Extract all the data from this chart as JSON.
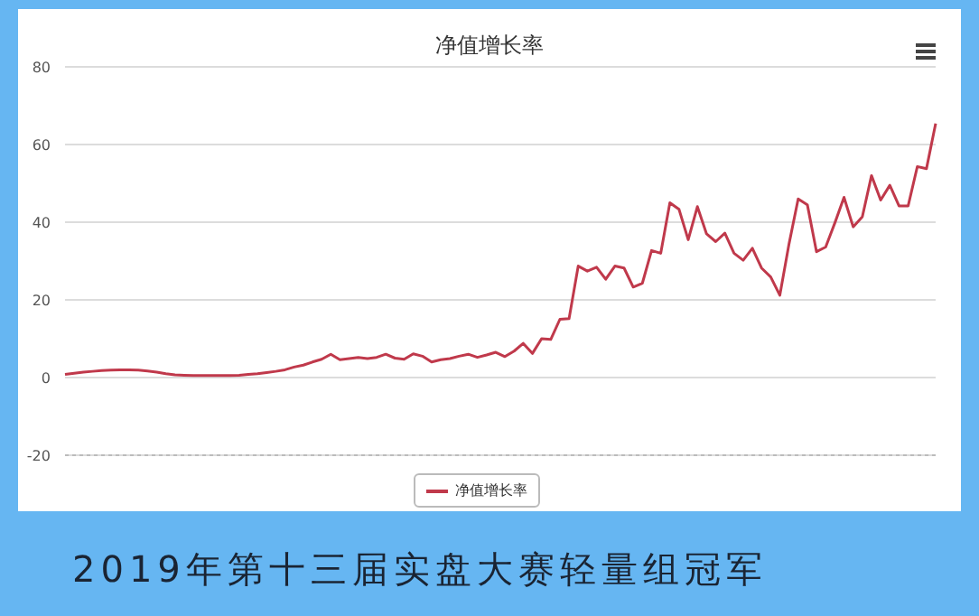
{
  "chart_data": {
    "type": "line",
    "title": "净值增长率",
    "categories": [
      null,
      null,
      null,
      null,
      null,
      null,
      null,
      null,
      null,
      null,
      null,
      null,
      null,
      null,
      null,
      null,
      null,
      null,
      null,
      null,
      null,
      null,
      null,
      null,
      null,
      null,
      null,
      null,
      null,
      null,
      null,
      null,
      null,
      null,
      null,
      null,
      null,
      null,
      null,
      null,
      null,
      null,
      null,
      null,
      null,
      null,
      null,
      null,
      null,
      null,
      null,
      null,
      null,
      null,
      null,
      null,
      null,
      null,
      null,
      null,
      null,
      null,
      null,
      null,
      null,
      null,
      null,
      null,
      null,
      null,
      null,
      null,
      null,
      null,
      null,
      null,
      null,
      null,
      null,
      null,
      null,
      null,
      null,
      null,
      null,
      null,
      null,
      null,
      null,
      null,
      null,
      null,
      null,
      null,
      null,
      null
    ],
    "series": [
      {
        "name": "净值增长率",
        "color": "#c0394b",
        "values": [
          0.8,
          1.1,
          1.4,
          1.6,
          1.8,
          1.9,
          2.0,
          2.0,
          1.9,
          1.7,
          1.4,
          1.0,
          0.7,
          0.6,
          0.5,
          0.5,
          0.5,
          0.5,
          0.5,
          0.6,
          0.8,
          1.0,
          1.3,
          1.6,
          2.0,
          2.7,
          3.2,
          4.0,
          4.7,
          6.0,
          4.6,
          4.9,
          5.2,
          4.9,
          5.2,
          6.0,
          5.0,
          4.7,
          6.1,
          5.5,
          4.0,
          4.6,
          4.9,
          5.5,
          6.0,
          5.2,
          5.8,
          6.5,
          5.4,
          6.8,
          8.8,
          6.2,
          10,
          9.8,
          15,
          15.2,
          28.7,
          27.4,
          28.4,
          25.3,
          28.7,
          28.2,
          23.3,
          24.3,
          32.7,
          32,
          45,
          43.3,
          35.5,
          44,
          37,
          35,
          37.2,
          32,
          30.2,
          33.3,
          28.2,
          25.9,
          21.2,
          34.4,
          46,
          44.5,
          32.4,
          33.6,
          39.8,
          46.4,
          38.8,
          41.4,
          52,
          45.7,
          49.5,
          44.2,
          44.2,
          54.3,
          53.8,
          65.4
        ]
      }
    ],
    "ylim": [
      -20,
      80
    ],
    "yticks": [
      -20,
      0,
      20,
      40,
      60,
      80
    ],
    "grid": "y",
    "legend": "bottom",
    "marker": "none",
    "annotations": [
      "2019年第十三届实盘大赛轻量组冠军"
    ]
  }
}
